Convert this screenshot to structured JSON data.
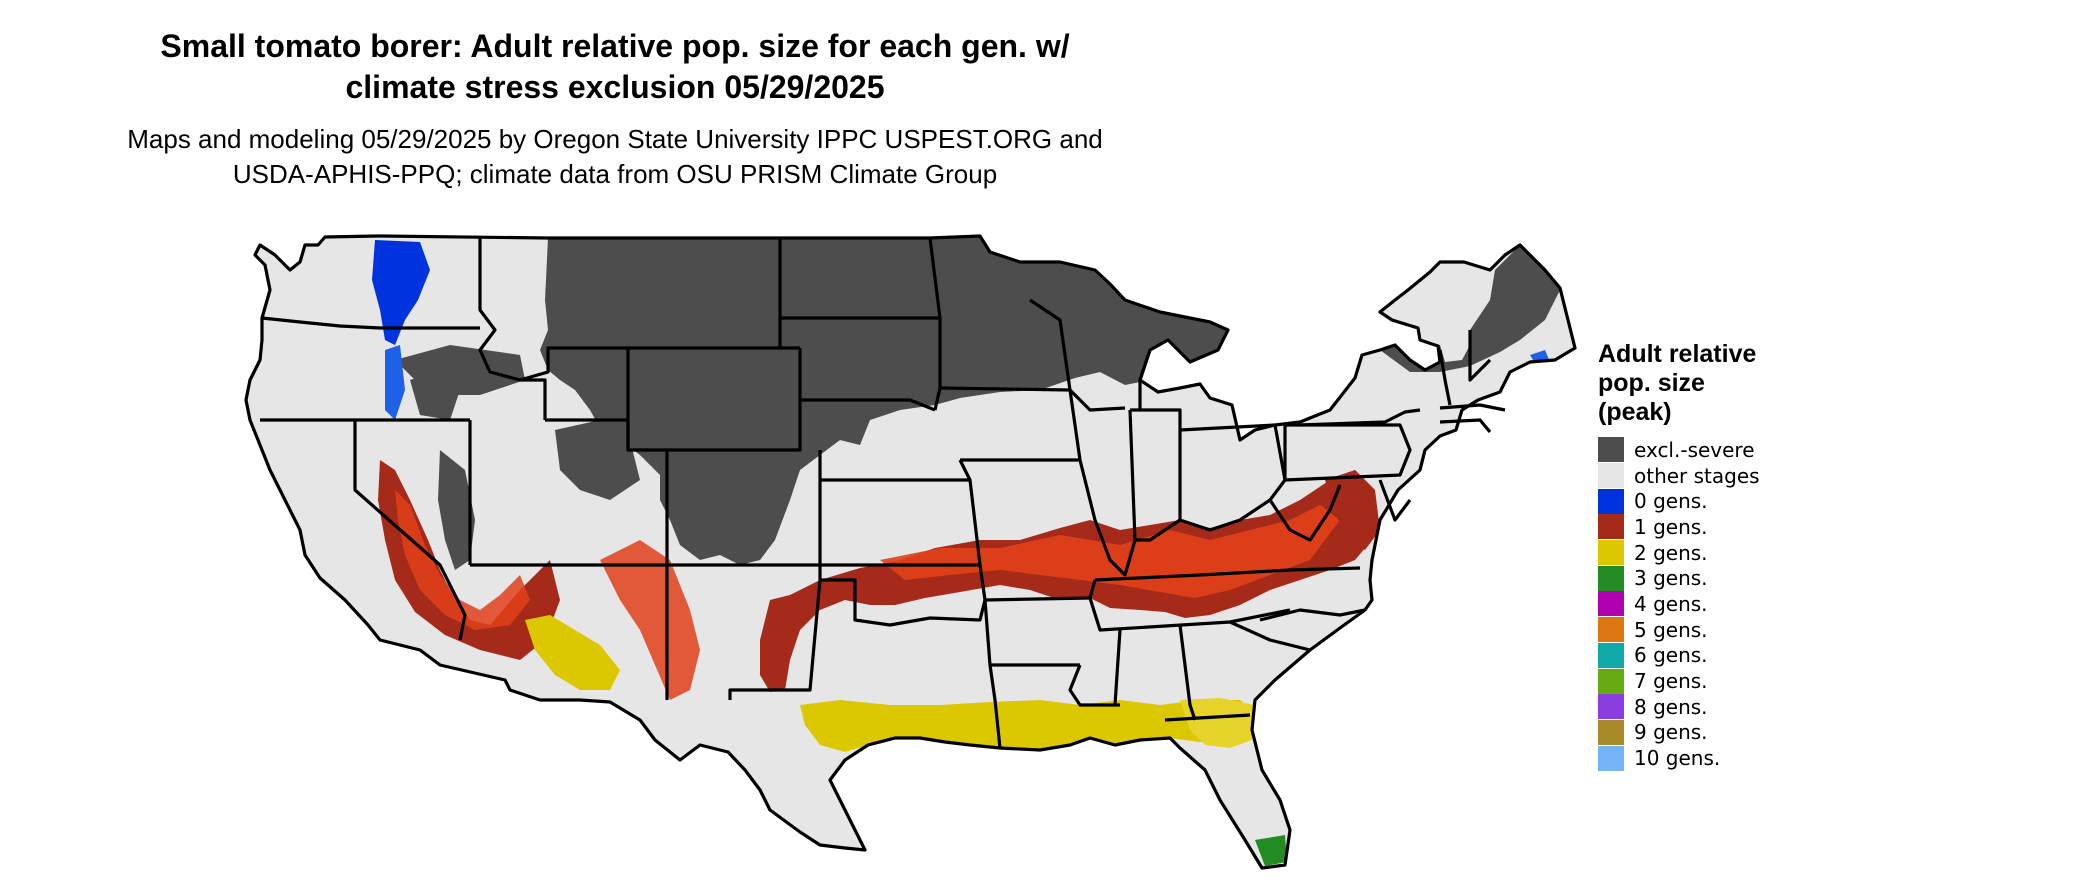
{
  "title_lines": [
    "Small tomato borer: Adult relative pop. size for each gen. w/",
    "climate stress exclusion 05/29/2025"
  ],
  "subtitle_lines": [
    "Maps and modeling 05/29/2025 by Oregon State University IPPC USPEST.ORG and",
    "USDA-APHIS-PPQ; climate data from OSU PRISM Climate Group"
  ],
  "legend": {
    "title_lines": [
      "Adult relative",
      "pop. size",
      "(peak)"
    ],
    "items": [
      {
        "label": "excl.-severe",
        "color": "#4d4d4d"
      },
      {
        "label": "other stages",
        "color": "#e6e6e6"
      },
      {
        "label": "0 gens.",
        "color": "#0033dd"
      },
      {
        "label": "1 gens.",
        "color": "#a52a1a"
      },
      {
        "label": "2 gens.",
        "color": "#dcc800"
      },
      {
        "label": "3 gens.",
        "color": "#228b22"
      },
      {
        "label": "4 gens.",
        "color": "#b000b0"
      },
      {
        "label": "5 gens.",
        "color": "#dd7711"
      },
      {
        "label": "6 gens.",
        "color": "#10a8a8"
      },
      {
        "label": "7 gens.",
        "color": "#66aa11"
      },
      {
        "label": "8 gens.",
        "color": "#8a3ee0"
      },
      {
        "label": "9 gens.",
        "color": "#a88a28"
      },
      {
        "label": "10 gens.",
        "color": "#74b4f4"
      }
    ]
  }
}
